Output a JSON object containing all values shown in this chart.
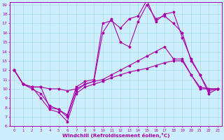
{
  "xlabel": "Windchill (Refroidissement éolien,°C)",
  "x": [
    0,
    1,
    2,
    3,
    4,
    5,
    6,
    7,
    8,
    9,
    10,
    11,
    12,
    13,
    14,
    15,
    16,
    17,
    18,
    19,
    20,
    21,
    22,
    23
  ],
  "line_top": [
    12.0,
    10.5,
    10.2,
    10.2,
    8.0,
    7.8,
    7.2,
    10.2,
    10.8,
    11.0,
    17.0,
    17.3,
    16.5,
    17.5,
    17.8,
    19.5,
    17.2,
    18.0,
    18.2,
    15.5,
    13.2,
    11.5,
    9.5,
    10.0
  ],
  "line_high": [
    12.0,
    10.5,
    10.0,
    9.5,
    8.2,
    7.8,
    7.0,
    9.8,
    10.5,
    10.8,
    16.0,
    17.5,
    15.0,
    14.5,
    17.2,
    19.0,
    17.5,
    17.8,
    17.0,
    16.0,
    13.0,
    11.5,
    9.8,
    10.0
  ],
  "line_mid": [
    12.0,
    10.5,
    10.2,
    10.2,
    10.0,
    10.0,
    9.8,
    10.0,
    10.5,
    10.8,
    11.0,
    11.5,
    12.0,
    12.5,
    13.0,
    13.5,
    14.0,
    14.5,
    13.2,
    13.2,
    11.5,
    10.2,
    10.0,
    10.0
  ],
  "line_low": [
    12.0,
    10.5,
    10.2,
    9.0,
    7.8,
    7.5,
    6.5,
    9.5,
    10.2,
    10.5,
    10.8,
    11.2,
    11.5,
    11.8,
    12.0,
    12.2,
    12.5,
    12.8,
    13.0,
    13.0,
    11.5,
    10.0,
    10.0,
    10.0
  ],
  "line_color": "#aa00aa",
  "bg_color": "#cceeff",
  "grid_color": "#aadddd",
  "ylim": [
    6,
    19
  ],
  "xlim": [
    -0.5,
    23.5
  ]
}
